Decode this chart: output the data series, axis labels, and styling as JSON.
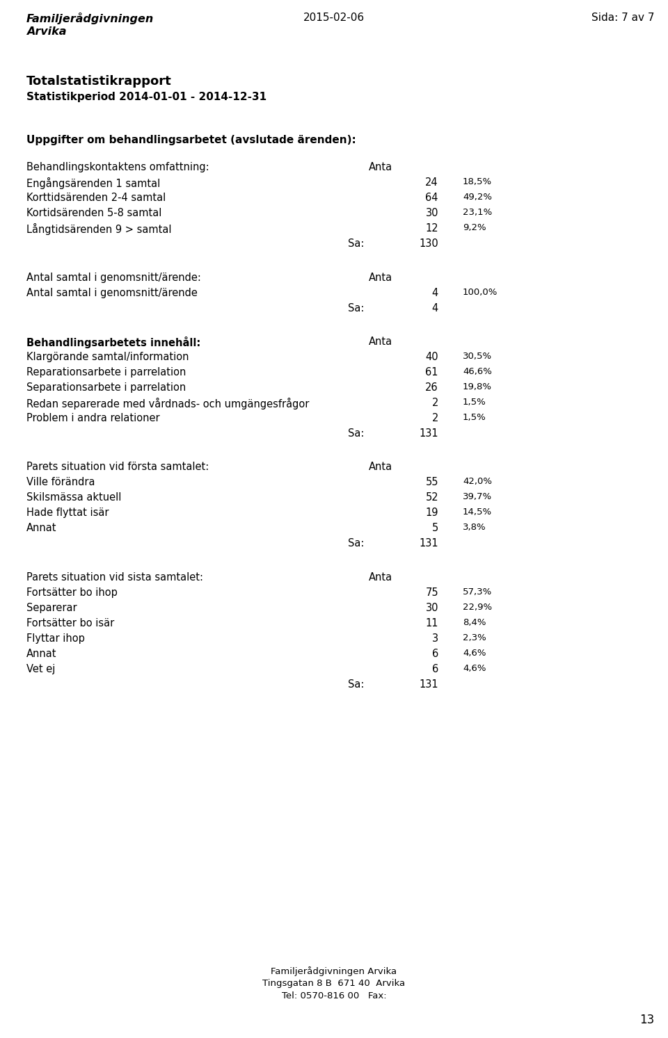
{
  "header_left_line1": "Familjerådgivningen",
  "header_left_line2": "Arvika",
  "header_center": "2015-02-06",
  "header_right": "Sida: 7 av 7",
  "title_line1": "Totalstatistikrapport",
  "title_line2": "Statistikperiod 2014-01-01 - 2014-12-31",
  "section1_header": "Uppgifter om behandlingsarbetet (avslutade ärenden):",
  "section2_header": "Behandlingskontaktens omfattning:",
  "section2_col": "Anta",
  "section2_rows": [
    [
      "Engångsärenden 1 samtal",
      "24",
      "18,5%"
    ],
    [
      "Korttidsärenden 2-4 samtal",
      "64",
      "49,2%"
    ],
    [
      "Kortidsärenden 5-8 samtal",
      "30",
      "23,1%"
    ],
    [
      "Långtidsärenden 9 > samtal",
      "12",
      "9,2%"
    ]
  ],
  "section2_sum": [
    "Sa:",
    "130"
  ],
  "section3_header": "Antal samtal i genomsnitt/ärende:",
  "section3_col": "Anta",
  "section3_rows": [
    [
      "Antal samtal i genomsnitt/ärende",
      "4",
      "100,0%"
    ]
  ],
  "section3_sum": [
    "Sa:",
    "4"
  ],
  "section4_header": "Behandlingsarbetets innehåll:",
  "section4_col": "Anta",
  "section4_rows": [
    [
      "Klargörande samtal/information",
      "40",
      "30,5%"
    ],
    [
      "Reparationsarbete i parrelation",
      "61",
      "46,6%"
    ],
    [
      "Separationsarbete i parrelation",
      "26",
      "19,8%"
    ],
    [
      "Redan separerade med vårdnads- och umgängesfrågor",
      "2",
      "1,5%"
    ],
    [
      "Problem i andra relationer",
      "2",
      "1,5%"
    ]
  ],
  "section4_sum": [
    "Sa:",
    "131"
  ],
  "section5_header": "Parets situation vid första samtalet:",
  "section5_col": "Anta",
  "section5_rows": [
    [
      "Ville förändra",
      "55",
      "42,0%"
    ],
    [
      "Skilsmässa aktuell",
      "52",
      "39,7%"
    ],
    [
      "Hade flyttat isär",
      "19",
      "14,5%"
    ],
    [
      "Annat",
      "5",
      "3,8%"
    ]
  ],
  "section5_sum": [
    "Sa:",
    "131"
  ],
  "section6_header": "Parets situation vid sista samtalet:",
  "section6_col": "Anta",
  "section6_rows": [
    [
      "Fortsätter bo ihop",
      "75",
      "57,3%"
    ],
    [
      "Separerar",
      "30",
      "22,9%"
    ],
    [
      "Fortsätter bo isär",
      "11",
      "8,4%"
    ],
    [
      "Flyttar ihop",
      "3",
      "2,3%"
    ],
    [
      "Annat",
      "6",
      "4,6%"
    ],
    [
      "Vet ej",
      "6",
      "4,6%"
    ]
  ],
  "section6_sum": [
    "Sa:",
    "131"
  ],
  "footer_line1": "Familjerådgivningen Arvika",
  "footer_line2": "Tingsgatan 8 B  671 40  Arvika",
  "footer_line3": "Tel: 0570-816 00   Fax:",
  "page_number": "13",
  "bg_color": "#ffffff",
  "text_color": "#000000"
}
